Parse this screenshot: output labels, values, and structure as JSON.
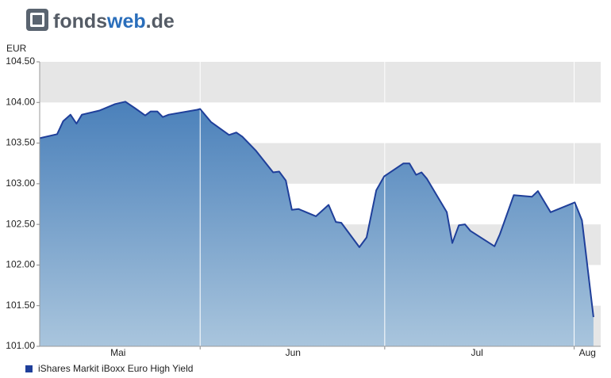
{
  "logo": {
    "parts": [
      "fonds",
      "web",
      ".de"
    ]
  },
  "chart_data": {
    "type": "area",
    "ylabel": "EUR",
    "x": [
      0,
      2.9,
      3.9,
      5.1,
      6.1,
      7.0,
      9.9,
      12.5,
      14.2,
      15.8,
      17.5,
      18.4,
      19.5,
      20.4,
      21.4,
      26.1,
      26.6,
      28.4,
      31.4,
      32.6,
      33.6,
      35.8,
      38.7,
      39.7,
      40.8,
      41.8,
      42.9,
      45.8,
      47.9,
      49.1,
      50.0,
      53.0,
      54.2,
      55.8,
      57.1,
      60.3,
      61.3,
      62.4,
      63.3,
      64.2,
      67.5,
      68.4,
      69.5,
      70.5,
      71.4,
      75.4,
      76.3,
      78.6,
      81.6,
      82.6,
      84.7,
      88.7,
      89.9,
      91.8
    ],
    "series": [
      {
        "name": "iShares Markit iBoxx Euro High Yield",
        "color": "#1f3f9a",
        "values": [
          103.56,
          103.61,
          103.77,
          103.85,
          103.74,
          103.85,
          103.9,
          103.98,
          104.01,
          103.93,
          103.84,
          103.89,
          103.89,
          103.82,
          103.85,
          103.91,
          103.92,
          103.76,
          103.6,
          103.63,
          103.58,
          103.41,
          103.14,
          103.15,
          103.04,
          102.68,
          102.69,
          102.6,
          102.74,
          102.53,
          102.52,
          102.22,
          102.34,
          102.92,
          103.09,
          103.25,
          103.25,
          103.11,
          103.14,
          103.06,
          102.65,
          102.27,
          102.49,
          102.5,
          102.42,
          102.23,
          102.38,
          102.86,
          102.84,
          102.91,
          102.65,
          102.77,
          102.55,
          101.36
        ]
      }
    ],
    "xlim": [
      0,
      93
    ],
    "xticks": [
      {
        "value": 13,
        "label": "Mai"
      },
      {
        "value": 42,
        "label": "Jun"
      },
      {
        "value": 72.5,
        "label": "Jul"
      },
      {
        "value": 90.8,
        "label": "Aug"
      }
    ],
    "xgrid": [
      26.6,
      57.2,
      88.6
    ],
    "ylim": [
      101,
      104.5
    ],
    "yticks": [
      {
        "value": 101,
        "label": "101.00"
      },
      {
        "value": 101.5,
        "label": "101.50"
      },
      {
        "value": 102,
        "label": "102.00"
      },
      {
        "value": 102.5,
        "label": "102.50"
      },
      {
        "value": 103,
        "label": "103.00"
      },
      {
        "value": 103.5,
        "label": "103.50"
      },
      {
        "value": 104,
        "label": "104.00"
      },
      {
        "value": 104.5,
        "label": "104.50"
      }
    ],
    "band_color": "#e6e6e6",
    "legend": "bottom-left"
  }
}
